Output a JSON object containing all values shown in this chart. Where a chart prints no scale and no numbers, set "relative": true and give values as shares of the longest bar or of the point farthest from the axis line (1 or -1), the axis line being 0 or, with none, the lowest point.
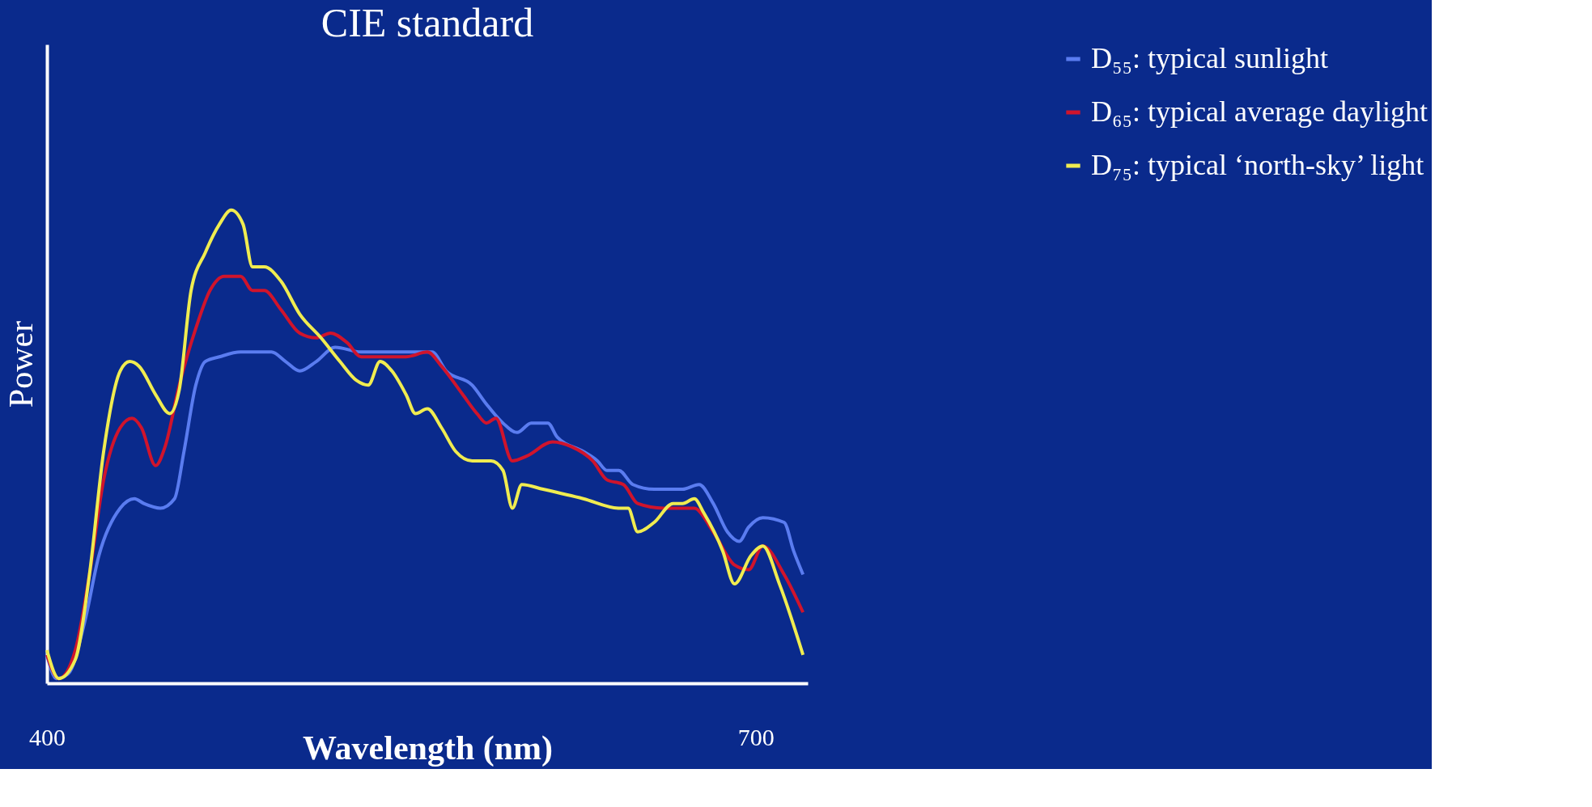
{
  "chart_data": {
    "type": "line",
    "title": "CIE standard",
    "xlabel": "Wavelength (nm)",
    "ylabel": "Power",
    "relative": true,
    "xlim": [
      400,
      722
    ],
    "xticks": [
      400,
      700
    ],
    "grid": false,
    "legend": "top right",
    "series": [
      {
        "name": "D₅₅: typical sunlight",
        "color": "#5a7cf0",
        "x": [
          400,
          404,
          409,
          416,
          422,
          431,
          437,
          441,
          448,
          454,
          458,
          463,
          467,
          473,
          482,
          488,
          495,
          501,
          507,
          514,
          522,
          533,
          546,
          559,
          563,
          569,
          580,
          586,
          593,
          599,
          605,
          612,
          616,
          627,
          633,
          637,
          642,
          648,
          657,
          669,
          676,
          682,
          688,
          693,
          697,
          703,
          712,
          716,
          720
        ],
        "values": [
          0.06,
          0.01,
          0.02,
          0.13,
          0.27,
          0.37,
          0.39,
          0.38,
          0.37,
          0.39,
          0.49,
          0.63,
          0.68,
          0.69,
          0.7,
          0.7,
          0.7,
          0.68,
          0.66,
          0.68,
          0.71,
          0.7,
          0.7,
          0.7,
          0.7,
          0.66,
          0.63,
          0.59,
          0.55,
          0.53,
          0.55,
          0.55,
          0.52,
          0.49,
          0.47,
          0.45,
          0.45,
          0.42,
          0.41,
          0.41,
          0.42,
          0.38,
          0.32,
          0.3,
          0.33,
          0.35,
          0.34,
          0.28,
          0.23
        ]
      },
      {
        "name": "D₆₅: typical average daylight",
        "color": "#d0142c",
        "x": [
          400,
          405,
          412,
          418,
          424,
          431,
          436,
          440,
          446,
          450,
          456,
          463,
          469,
          475,
          482,
          487,
          492,
          499,
          507,
          514,
          520,
          527,
          533,
          541,
          552,
          561,
          567,
          576,
          582,
          586,
          590,
          597,
          603,
          614,
          622,
          631,
          637,
          644,
          650,
          661,
          674,
          682,
          691,
          697,
          703,
          712,
          720
        ],
        "values": [
          0.06,
          0.01,
          0.07,
          0.23,
          0.43,
          0.54,
          0.56,
          0.54,
          0.46,
          0.5,
          0.63,
          0.75,
          0.83,
          0.86,
          0.86,
          0.83,
          0.83,
          0.79,
          0.74,
          0.73,
          0.74,
          0.72,
          0.69,
          0.69,
          0.69,
          0.7,
          0.67,
          0.61,
          0.57,
          0.55,
          0.56,
          0.47,
          0.48,
          0.51,
          0.5,
          0.47,
          0.43,
          0.42,
          0.38,
          0.37,
          0.37,
          0.32,
          0.25,
          0.24,
          0.29,
          0.23,
          0.15
        ]
      },
      {
        "name": "D₇₅: typical ‘north-sky’ light",
        "color": "#f0ec50",
        "x": [
          400,
          405,
          412,
          418,
          424,
          431,
          435,
          439,
          446,
          452,
          456,
          461,
          467,
          473,
          478,
          483,
          487,
          492,
          499,
          507,
          516,
          524,
          531,
          536,
          541,
          546,
          552,
          556,
          561,
          567,
          573,
          580,
          588,
          593,
          597,
          601,
          610,
          627,
          642,
          646,
          650,
          657,
          665,
          669,
          674,
          678,
          686,
          691,
          698,
          703,
          710,
          720
        ],
        "values": [
          0.07,
          0.01,
          0.05,
          0.23,
          0.49,
          0.66,
          0.68,
          0.67,
          0.61,
          0.57,
          0.62,
          0.83,
          0.91,
          0.97,
          1.0,
          0.97,
          0.88,
          0.88,
          0.85,
          0.78,
          0.73,
          0.68,
          0.64,
          0.63,
          0.68,
          0.66,
          0.61,
          0.57,
          0.58,
          0.54,
          0.49,
          0.47,
          0.47,
          0.45,
          0.37,
          0.42,
          0.41,
          0.39,
          0.37,
          0.37,
          0.32,
          0.34,
          0.38,
          0.38,
          0.39,
          0.36,
          0.28,
          0.21,
          0.27,
          0.29,
          0.21,
          0.06
        ]
      }
    ]
  }
}
